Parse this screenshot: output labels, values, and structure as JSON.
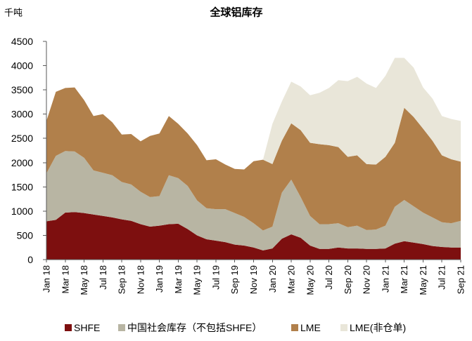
{
  "chart_data": {
    "type": "area",
    "stacked": true,
    "title": "全球铝库存",
    "ylabel": "千吨",
    "ylim": [
      0,
      4500
    ],
    "y_ticks": [
      0,
      500,
      1000,
      1500,
      2000,
      2500,
      3000,
      3500,
      4000,
      4500
    ],
    "grid": false,
    "legend_position": "bottom",
    "x": [
      "2018-01",
      "2018-02",
      "2018-03",
      "2018-04",
      "2018-05",
      "2018-06",
      "2018-07",
      "2018-08",
      "2018-09",
      "2018-10",
      "2018-11",
      "2018-12",
      "2019-01",
      "2019-02",
      "2019-03",
      "2019-04",
      "2019-05",
      "2019-06",
      "2019-07",
      "2019-08",
      "2019-09",
      "2019-10",
      "2019-11",
      "2019-12",
      "2020-01",
      "2020-02",
      "2020-03",
      "2020-04",
      "2020-05",
      "2020-06",
      "2020-07",
      "2020-08",
      "2020-09",
      "2020-10",
      "2020-11",
      "2020-12",
      "2021-01",
      "2021-02",
      "2021-03",
      "2021-04",
      "2021-05",
      "2021-06",
      "2021-07",
      "2021-08",
      "2021-09"
    ],
    "x_tick_labels": [
      "Jan 18",
      "Mar 18",
      "May 18",
      "Jul 18",
      "Sep 18",
      "Nov 18",
      "Jan 19",
      "Mar 19",
      "May 19",
      "Jul 19",
      "Sep 19",
      "Nov 19",
      "Jan 20",
      "Mar 20",
      "May 20",
      "Jul 20",
      "Sep 20",
      "Nov 20",
      "Jan 21",
      "Mar 21",
      "May 21",
      "Jul 21",
      "Sep 21"
    ],
    "series": [
      {
        "name": "SHFE",
        "color": "#7d0f0f",
        "values": [
          790,
          820,
          970,
          980,
          960,
          930,
          900,
          870,
          830,
          800,
          730,
          680,
          700,
          730,
          740,
          630,
          500,
          420,
          390,
          360,
          310,
          290,
          250,
          190,
          230,
          430,
          520,
          450,
          290,
          220,
          220,
          250,
          230,
          230,
          220,
          220,
          230,
          330,
          380,
          350,
          320,
          280,
          260,
          250,
          250
        ]
      },
      {
        "name": "中国社会库存（不包括SHFE）",
        "color": "#b8b5a3",
        "values": [
          990,
          1320,
          1270,
          1250,
          1140,
          910,
          890,
          870,
          770,
          750,
          670,
          610,
          610,
          1010,
          940,
          890,
          720,
          640,
          650,
          680,
          650,
          590,
          500,
          410,
          450,
          950,
          1130,
          840,
          610,
          510,
          510,
          500,
          440,
          470,
          390,
          400,
          470,
          760,
          850,
          750,
          650,
          590,
          510,
          500,
          550
        ]
      },
      {
        "name": "LME",
        "color": "#b1804b",
        "values": [
          1080,
          1320,
          1300,
          1320,
          1190,
          1120,
          1210,
          1090,
          980,
          1040,
          1040,
          1260,
          1290,
          1220,
          1120,
          1080,
          1140,
          990,
          1030,
          920,
          910,
          980,
          1280,
          1460,
          1290,
          1070,
          1160,
          1380,
          1510,
          1650,
          1630,
          1570,
          1450,
          1450,
          1360,
          1340,
          1420,
          1320,
          1900,
          1840,
          1730,
          1580,
          1380,
          1320,
          1220
        ]
      },
      {
        "name": "LME(非仓单)",
        "color": "#e9e6d9",
        "values": [
          null,
          null,
          null,
          null,
          null,
          null,
          null,
          null,
          null,
          null,
          null,
          null,
          null,
          null,
          null,
          null,
          null,
          null,
          null,
          null,
          null,
          null,
          null,
          null,
          830,
          810,
          860,
          900,
          980,
          1060,
          1180,
          1380,
          1560,
          1620,
          1660,
          1580,
          1670,
          1750,
          1030,
          1020,
          850,
          870,
          810,
          830,
          840
        ]
      }
    ]
  }
}
